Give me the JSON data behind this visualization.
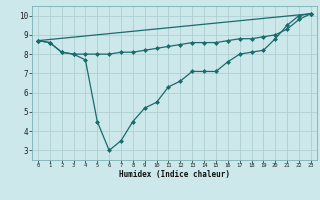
{
  "xlabel": "Humidex (Indice chaleur)",
  "bg_color": "#cce8eb",
  "grid_color": "#b0d0d4",
  "line_color": "#1a6b6b",
  "xlim": [
    -0.5,
    23.5
  ],
  "ylim": [
    2.5,
    10.5
  ],
  "xticks": [
    0,
    1,
    2,
    3,
    4,
    5,
    6,
    7,
    8,
    9,
    10,
    11,
    12,
    13,
    14,
    15,
    16,
    17,
    18,
    19,
    20,
    21,
    22,
    23
  ],
  "yticks": [
    3,
    4,
    5,
    6,
    7,
    8,
    9,
    10
  ],
  "line1_x": [
    0,
    1,
    2,
    3,
    4,
    5,
    6,
    7,
    8,
    9,
    10,
    11,
    12,
    13,
    14,
    15,
    16,
    17,
    18,
    19,
    20,
    21,
    22,
    23
  ],
  "line1_y": [
    8.7,
    8.6,
    8.1,
    8.0,
    7.7,
    4.5,
    3.0,
    3.5,
    4.5,
    5.2,
    5.5,
    6.3,
    6.6,
    7.1,
    7.1,
    7.1,
    7.6,
    8.0,
    8.1,
    8.2,
    8.8,
    9.5,
    10.0,
    10.1
  ],
  "line2_x": [
    0,
    1,
    2,
    3,
    4,
    5,
    6,
    7,
    8,
    9,
    10,
    11,
    12,
    13,
    14,
    15,
    16,
    17,
    18,
    19,
    20,
    21,
    22,
    23
  ],
  "line2_y": [
    8.7,
    8.6,
    8.1,
    8.0,
    8.0,
    8.0,
    8.0,
    8.1,
    8.1,
    8.2,
    8.3,
    8.4,
    8.5,
    8.6,
    8.6,
    8.6,
    8.7,
    8.8,
    8.8,
    8.9,
    9.0,
    9.3,
    9.8,
    10.1
  ],
  "line3_x": [
    0,
    23
  ],
  "line3_y": [
    8.7,
    10.1
  ]
}
